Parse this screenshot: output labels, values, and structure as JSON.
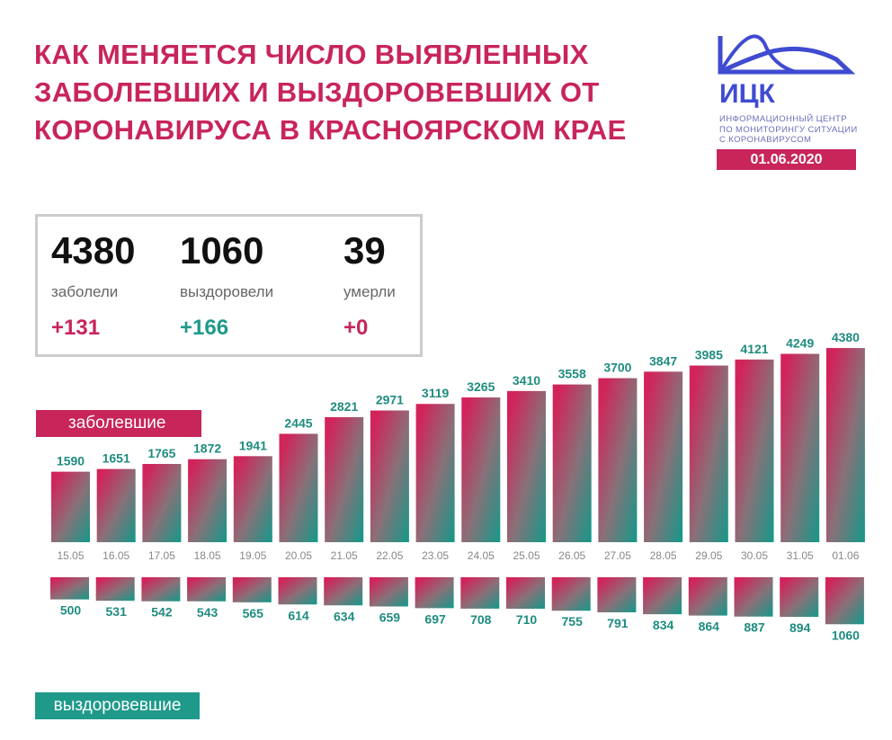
{
  "title": "КАК МЕНЯЕТСЯ ЧИСЛО ВЫЯВЛЕННЫХ ЗАБОЛЕВШИХ И ВЫЗДОРОВЕВШИХ ОТ КОРОНАВИРУСА В КРАСНОЯРСКОМ КРАЕ",
  "logo": {
    "abbr": "ИЦК",
    "line1": "ИНФОРМАЦИОННЫЙ ЦЕНТР",
    "line2": "ПО МОНИТОРИНГУ СИТУАЦИИ",
    "line3": "С КОРОНАВИРУСОМ",
    "color": "#3f4bd1"
  },
  "date": "01.06.2020",
  "stats": [
    {
      "value": "4380",
      "label": "заболели",
      "delta": "+131",
      "color": "#c8255a"
    },
    {
      "value": "1060",
      "label": "выздоровели",
      "delta": "+166",
      "color": "#1f9a8a"
    },
    {
      "value": "39",
      "label": "умерли",
      "delta": "+0",
      "color": "#c8255a"
    }
  ],
  "colors": {
    "primary": "#c8255a",
    "secondary": "#1f9a8a"
  },
  "chart_data": {
    "type": "bar",
    "categories": [
      "15.05",
      "16.05",
      "17.05",
      "18.05",
      "19.05",
      "20.05",
      "21.05",
      "22.05",
      "23.05",
      "24.05",
      "25.05",
      "26.05",
      "27.05",
      "28.05",
      "29.05",
      "30.05",
      "31.05",
      "01.06"
    ],
    "series": [
      {
        "name": "заболевшие",
        "direction": "up",
        "values": [
          1590,
          1651,
          1765,
          1872,
          1941,
          2445,
          2821,
          2971,
          3119,
          3265,
          3410,
          3558,
          3700,
          3847,
          3985,
          4121,
          4249,
          4380
        ]
      },
      {
        "name": "выздоровевшие",
        "direction": "down",
        "values": [
          500,
          531,
          542,
          543,
          565,
          614,
          634,
          659,
          697,
          708,
          710,
          755,
          791,
          834,
          864,
          887,
          894,
          1060
        ]
      }
    ]
  }
}
